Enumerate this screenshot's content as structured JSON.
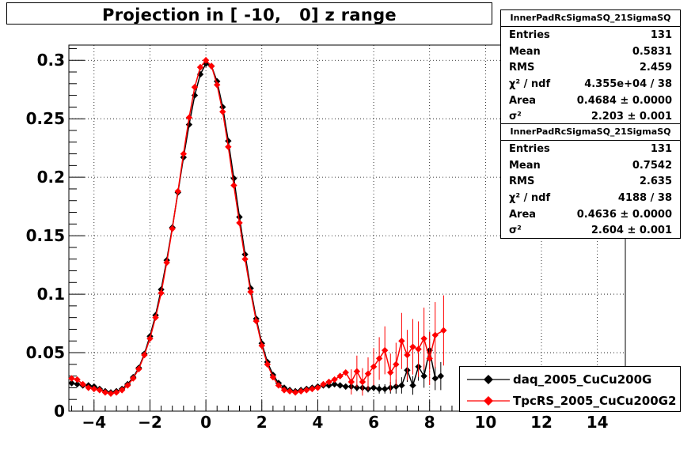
{
  "title": "Projection in [ -10,   0] z range",
  "stats": [
    {
      "title": "InnerPadRcSigmaSQ_21SigmaSQ",
      "rows": [
        {
          "label": "Entries",
          "value": "131"
        },
        {
          "label": "Mean",
          "value": "0.5831"
        },
        {
          "label": "RMS",
          "value": "2.459"
        },
        {
          "label": "χ² / ndf",
          "value": "4.355e+04 / 38"
        },
        {
          "label": "Area",
          "value": "0.4684 ± 0.0000"
        },
        {
          "label": "σ²",
          "value": "2.203 ± 0.001"
        }
      ]
    },
    {
      "title": "InnerPadRcSigmaSQ_21SigmaSQ",
      "rows": [
        {
          "label": "Entries",
          "value": "131"
        },
        {
          "label": "Mean",
          "value": "0.7542"
        },
        {
          "label": "RMS",
          "value": "2.635"
        },
        {
          "label": "χ² / ndf",
          "value": "4188 / 38"
        },
        {
          "label": "Area",
          "value": "0.4636 ± 0.0000"
        },
        {
          "label": "σ²",
          "value": "2.604 ± 0.001"
        }
      ]
    }
  ],
  "legend": [
    {
      "label": "daq_2005_CuCu200G",
      "color": "#000000"
    },
    {
      "label": "TpcRS_2005_CuCu200G2",
      "color": "#ff0000"
    }
  ],
  "chart_data": {
    "type": "scatter",
    "title": "Projection in [ -10,   0] z range",
    "xlim": [
      -4.9,
      15.0
    ],
    "ylim": [
      0,
      0.313
    ],
    "x_ticks": [
      -4,
      -2,
      0,
      2,
      4,
      6,
      8,
      10,
      12,
      14
    ],
    "x_tick_labels": [
      "−4",
      "−2",
      "0",
      "2",
      "4",
      "6",
      "8",
      "10",
      "12",
      "14"
    ],
    "y_ticks": [
      0,
      0.05,
      0.1,
      0.15,
      0.2,
      0.25,
      0.3
    ],
    "y_tick_labels": [
      "0",
      "0.05",
      "0.1",
      "0.15",
      "0.2",
      "0.25",
      "0.3"
    ],
    "grid": true,
    "legend_position": "bottom-right",
    "series": [
      {
        "name": "daq_2005_CuCu200G",
        "color": "#000000",
        "x": [
          -4.8,
          -4.6,
          -4.4,
          -4.2,
          -4.0,
          -3.8,
          -3.6,
          -3.4,
          -3.2,
          -3.0,
          -2.8,
          -2.6,
          -2.4,
          -2.2,
          -2.0,
          -1.8,
          -1.6,
          -1.4,
          -1.2,
          -1.0,
          -0.8,
          -0.6,
          -0.4,
          -0.2,
          0.0,
          0.2,
          0.4,
          0.6,
          0.8,
          1.0,
          1.2,
          1.4,
          1.6,
          1.8,
          2.0,
          2.2,
          2.4,
          2.6,
          2.8,
          3.0,
          3.2,
          3.4,
          3.6,
          3.8,
          4.0,
          4.2,
          4.4,
          4.6,
          4.8,
          5.0,
          5.2,
          5.4,
          5.6,
          5.8,
          6.0,
          6.2,
          6.4,
          6.6,
          6.8,
          7.0,
          7.2,
          7.4,
          7.6,
          7.8,
          8.0,
          8.2,
          8.4
        ],
        "y": [
          0.024,
          0.023,
          0.022,
          0.022,
          0.021,
          0.019,
          0.017,
          0.016,
          0.017,
          0.019,
          0.023,
          0.029,
          0.037,
          0.049,
          0.064,
          0.082,
          0.104,
          0.129,
          0.157,
          0.187,
          0.217,
          0.245,
          0.27,
          0.288,
          0.297,
          0.295,
          0.282,
          0.26,
          0.231,
          0.199,
          0.166,
          0.134,
          0.105,
          0.079,
          0.058,
          0.042,
          0.031,
          0.024,
          0.02,
          0.018,
          0.017,
          0.018,
          0.019,
          0.02,
          0.021,
          0.022,
          0.022,
          0.023,
          0.022,
          0.021,
          0.021,
          0.02,
          0.02,
          0.019,
          0.02,
          0.019,
          0.019,
          0.02,
          0.021,
          0.022,
          0.035,
          0.022,
          0.038,
          0.03,
          0.052,
          0.028,
          0.03
        ],
        "err": [
          0.002,
          0.002,
          0.002,
          0.002,
          0.002,
          0.001,
          0.001,
          0.001,
          0.001,
          0.001,
          0.001,
          0.001,
          0.001,
          0.001,
          0.001,
          0.001,
          0.001,
          0.001,
          0.001,
          0.001,
          0.001,
          0.001,
          0.001,
          0.001,
          0.001,
          0.001,
          0.001,
          0.001,
          0.001,
          0.001,
          0.001,
          0.001,
          0.001,
          0.001,
          0.001,
          0.001,
          0.001,
          0.001,
          0.001,
          0.001,
          0.001,
          0.001,
          0.001,
          0.001,
          0.002,
          0.002,
          0.002,
          0.002,
          0.002,
          0.002,
          0.002,
          0.003,
          0.003,
          0.003,
          0.003,
          0.004,
          0.004,
          0.005,
          0.006,
          0.007,
          0.01,
          0.008,
          0.012,
          0.01,
          0.016,
          0.01,
          0.012
        ]
      },
      {
        "name": "TpcRS_2005_CuCu200G2",
        "color": "#ff0000",
        "x": [
          -4.8,
          -4.6,
          -4.4,
          -4.2,
          -4.0,
          -3.8,
          -3.6,
          -3.4,
          -3.2,
          -3.0,
          -2.8,
          -2.6,
          -2.4,
          -2.2,
          -2.0,
          -1.8,
          -1.6,
          -1.4,
          -1.2,
          -1.0,
          -0.8,
          -0.6,
          -0.4,
          -0.2,
          0.0,
          0.2,
          0.4,
          0.6,
          0.8,
          1.0,
          1.2,
          1.4,
          1.6,
          1.8,
          2.0,
          2.2,
          2.4,
          2.6,
          2.8,
          3.0,
          3.2,
          3.4,
          3.6,
          3.8,
          4.0,
          4.2,
          4.4,
          4.6,
          4.8,
          5.0,
          5.2,
          5.4,
          5.6,
          5.8,
          6.0,
          6.2,
          6.4,
          6.6,
          6.8,
          7.0,
          7.2,
          7.4,
          7.6,
          7.8,
          8.0,
          8.2,
          8.5
        ],
        "y": [
          0.028,
          0.027,
          0.023,
          0.02,
          0.019,
          0.018,
          0.016,
          0.015,
          0.016,
          0.018,
          0.022,
          0.028,
          0.036,
          0.048,
          0.062,
          0.08,
          0.101,
          0.127,
          0.156,
          0.188,
          0.22,
          0.251,
          0.277,
          0.294,
          0.3,
          0.295,
          0.279,
          0.256,
          0.226,
          0.193,
          0.161,
          0.13,
          0.102,
          0.077,
          0.056,
          0.04,
          0.029,
          0.022,
          0.018,
          0.017,
          0.016,
          0.017,
          0.018,
          0.019,
          0.02,
          0.023,
          0.025,
          0.027,
          0.03,
          0.033,
          0.025,
          0.034,
          0.025,
          0.032,
          0.038,
          0.045,
          0.052,
          0.033,
          0.04,
          0.06,
          0.048,
          0.055,
          0.053,
          0.062,
          0.045,
          0.065,
          0.069
        ]
      }
    ]
  }
}
